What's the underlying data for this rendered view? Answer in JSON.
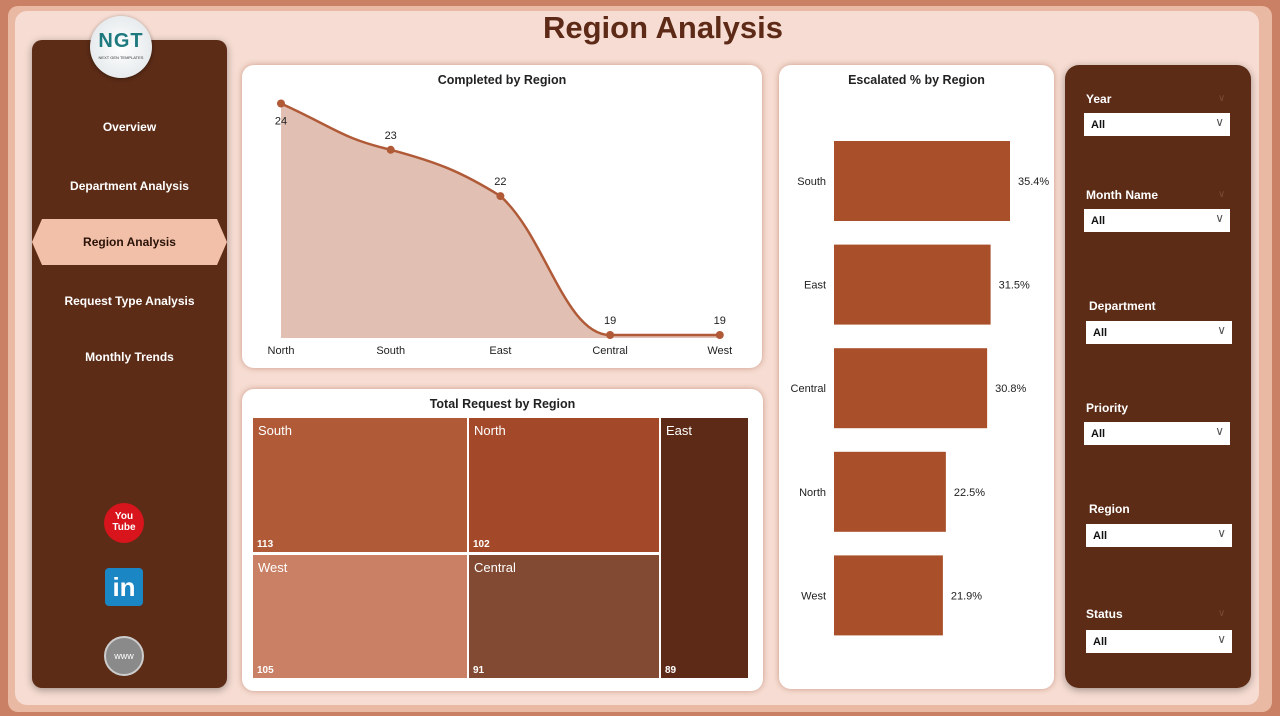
{
  "header": {
    "title": "Region Analysis"
  },
  "logo": {
    "text": "NGT",
    "subtext": "NEXT GEN TEMPLATES"
  },
  "nav": [
    {
      "label": "Overview"
    },
    {
      "label": "Department Analysis"
    },
    {
      "label": "Region Analysis",
      "active": true
    },
    {
      "label": "Request Type Analysis"
    },
    {
      "label": "Monthly Trends"
    }
  ],
  "social": [
    {
      "icon": "youtube-icon",
      "label": "You Tube"
    },
    {
      "icon": "linkedin-icon",
      "label": "in"
    },
    {
      "icon": "globe-icon",
      "label": "www"
    }
  ],
  "charts": {
    "completed_title": "Completed by Region",
    "treemap_title": "Total Request by Region",
    "escalated_title": "Escalated % by Region"
  },
  "chart_data": [
    {
      "type": "area",
      "title": "Completed by Region",
      "categories": [
        "North",
        "South",
        "East",
        "Central",
        "West"
      ],
      "values": [
        24,
        23,
        22,
        19,
        19
      ],
      "labels": [
        "24",
        "23",
        "22",
        "19",
        "19"
      ],
      "color": "#b05a38"
    },
    {
      "type": "treemap",
      "title": "Total Request by Region",
      "categories": [
        "South",
        "North",
        "West",
        "Central",
        "East"
      ],
      "values": [
        113,
        102,
        105,
        91,
        89
      ],
      "labels": [
        "113",
        "102",
        "105",
        "91",
        "89"
      ],
      "colors": [
        "#b05a38",
        "#a3492a",
        "#c98064",
        "#834a33",
        "#5d2a17"
      ]
    },
    {
      "type": "bar",
      "orientation": "horizontal",
      "title": "Escalated % by Region",
      "categories": [
        "South",
        "East",
        "Central",
        "North",
        "West"
      ],
      "values": [
        35.4,
        31.5,
        30.8,
        22.5,
        21.9
      ],
      "labels": [
        "35.4%",
        "31.5%",
        "30.8%",
        "22.5%",
        "21.9%"
      ],
      "color": "#a9502a"
    }
  ],
  "filters": [
    {
      "label": "Year",
      "value": "All"
    },
    {
      "label": "Month Name",
      "value": "All"
    },
    {
      "label": "Department",
      "value": "All"
    },
    {
      "label": "Priority",
      "value": "All"
    },
    {
      "label": "Region",
      "value": "All"
    },
    {
      "label": "Status",
      "value": "All"
    }
  ]
}
